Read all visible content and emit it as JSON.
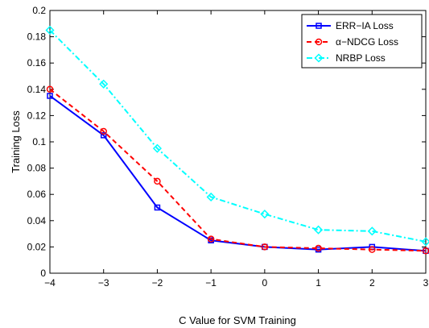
{
  "chart_data": {
    "type": "line",
    "xlabel": "C Value for SVM Training",
    "ylabel": "Training Loss",
    "xlim": [
      -4,
      3
    ],
    "ylim": [
      0,
      0.2
    ],
    "xticks": [
      -4,
      -3,
      -2,
      -1,
      0,
      1,
      2,
      3
    ],
    "yticks": [
      0,
      0.02,
      0.04,
      0.06,
      0.08,
      0.1,
      0.12,
      0.14,
      0.16,
      0.18,
      0.2
    ],
    "grid": false,
    "legend_position": "top-right",
    "x": [
      -4,
      -3,
      -2,
      -1,
      0,
      1,
      2,
      3
    ],
    "series": [
      {
        "name": "ERR−IA Loss",
        "values": [
          0.135,
          0.105,
          0.05,
          0.025,
          0.02,
          0.018,
          0.02,
          0.017
        ],
        "color": "#0000ff",
        "line_style": "solid",
        "marker": "square"
      },
      {
        "name": "α−NDCG Loss",
        "values": [
          0.14,
          0.108,
          0.07,
          0.026,
          0.02,
          0.019,
          0.018,
          0.017
        ],
        "color": "#ff0000",
        "line_style": "dashed",
        "marker": "circle"
      },
      {
        "name": "NRBP Loss",
        "values": [
          0.185,
          0.144,
          0.095,
          0.058,
          0.045,
          0.033,
          0.032,
          0.024
        ],
        "color": "#00ffff",
        "line_style": "dashdot",
        "marker": "diamond"
      }
    ]
  }
}
